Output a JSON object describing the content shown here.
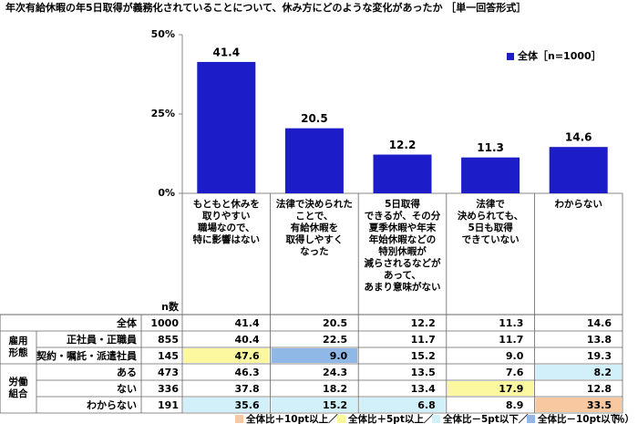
{
  "chart_data": {
    "type": "bar",
    "title": "年次有給休暇の年5日取得が義務化されていることについて、休み方にどのような変化があったか ［単一回答形式］",
    "categories": [
      "もともと休みを\n取りやすい\n職場なので、\n特に影響はない",
      "法律で決められた\nことで、\n有給休暇を\n取得しやすく\nなった",
      "5日取得\nできるが、その分\n夏季休暇や年末\n年始休暇などの\n特別休暇が\n減らされるなどが\nあって、\nあまり意味がない",
      "法律で\n決められても、\n5日も取得\nできていない",
      "わからない"
    ],
    "series": [
      {
        "name": "全体［n=1000］",
        "color": "#1c1cc8",
        "values": [
          41.4,
          20.5,
          12.2,
          11.3,
          14.6
        ]
      }
    ],
    "ylim": [
      0,
      50
    ],
    "yticks": [
      {
        "value": 0,
        "label": "0%"
      },
      {
        "value": 25,
        "label": "25%"
      },
      {
        "value": 50,
        "label": "50%"
      }
    ],
    "legend": "upper right"
  },
  "table": {
    "n_header": "n数",
    "rows": [
      {
        "label": "全体",
        "n": "1000",
        "values": [
          "41.4",
          "20.5",
          "12.2",
          "11.3",
          "14.6"
        ],
        "shade": [
          null,
          null,
          null,
          null,
          null
        ]
      },
      {
        "label": "正社員・正職員",
        "n": "855",
        "values": [
          "40.4",
          "22.5",
          "11.7",
          "11.7",
          "13.8"
        ],
        "shade": [
          null,
          null,
          null,
          null,
          null
        ]
      },
      {
        "label": "契約・嘱託・派遣社員",
        "n": "145",
        "values": [
          "47.6",
          "9.0",
          "15.2",
          "9.0",
          "19.3"
        ],
        "shade": [
          1,
          3,
          null,
          null,
          null
        ]
      },
      {
        "label": "ある",
        "n": "473",
        "values": [
          "46.3",
          "24.3",
          "13.5",
          "7.6",
          "8.2"
        ],
        "shade": [
          null,
          null,
          null,
          null,
          2
        ]
      },
      {
        "label": "ない",
        "n": "336",
        "values": [
          "37.8",
          "18.2",
          "13.4",
          "17.9",
          "12.8"
        ],
        "shade": [
          null,
          null,
          null,
          1,
          null
        ]
      },
      {
        "label": "わからない",
        "n": "191",
        "values": [
          "35.6",
          "15.2",
          "6.8",
          "8.9",
          "33.5"
        ],
        "shade": [
          2,
          2,
          2,
          null,
          0
        ]
      }
    ],
    "groups": [
      {
        "label": "雇用\n形態",
        "start": 1,
        "span": 2
      },
      {
        "label": "労働\n組合",
        "start": 3,
        "span": 3
      }
    ]
  },
  "legend": {
    "items": [
      {
        "label": "全体比＋10pt以上／",
        "color": "#f8c8a0"
      },
      {
        "label": "全体比＋5pt以上／",
        "color": "#fbf8a0"
      },
      {
        "label": "全体比－5pt以下／",
        "color": "#d2f0fa"
      },
      {
        "label": "全体比－10pt以下",
        "color": "#8fb8e6"
      }
    ],
    "unit": "（％）"
  }
}
